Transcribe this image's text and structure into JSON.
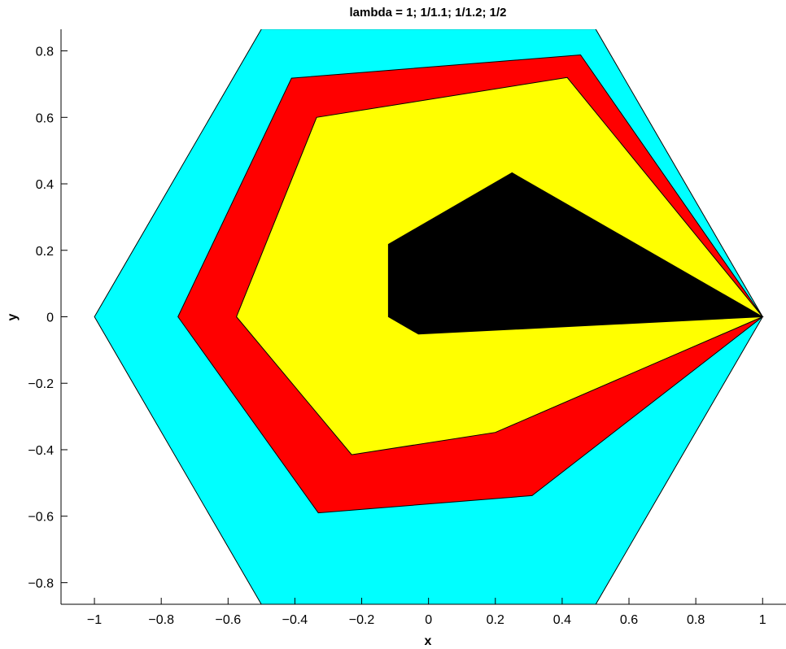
{
  "chart_data": {
    "type": "area",
    "title": "lambda  =  1; 1/1.1; 1/1.2; 1/2",
    "xlabel": "x",
    "ylabel": "y",
    "xlim": [
      -1.1,
      1.07
    ],
    "ylim": [
      -0.865,
      0.865
    ],
    "xticks": [
      -1,
      -0.8,
      -0.6,
      -0.4,
      -0.2,
      0,
      0.2,
      0.4,
      0.6,
      0.8,
      1
    ],
    "xtick_labels": [
      "−1",
      "−0.8",
      "−0.6",
      "−0.4",
      "−0.2",
      "0",
      "0.2",
      "0.4",
      "0.6",
      "0.8",
      "1"
    ],
    "yticks": [
      0.8,
      0.6,
      0.4,
      0.2,
      0,
      -0.2,
      -0.4,
      -0.6,
      -0.8
    ],
    "ytick_labels": [
      "0.8",
      "0.6",
      "0.4",
      "0.2",
      "0",
      "−0.2",
      "−0.4",
      "−0.6",
      "−0.8"
    ],
    "grid": false,
    "legend": "none",
    "series": [
      {
        "color": "#00ffff",
        "points": [
          [
            1,
            0
          ],
          [
            0.5,
            0.866
          ],
          [
            -0.5,
            0.866
          ],
          [
            -1,
            0
          ],
          [
            -0.5,
            -0.866
          ],
          [
            0.5,
            -0.866
          ]
        ]
      },
      {
        "color": "#ff0000",
        "points": [
          [
            1,
            0
          ],
          [
            0.455,
            0.788
          ],
          [
            -0.41,
            0.718
          ],
          [
            -0.75,
            0
          ],
          [
            -0.33,
            -0.59
          ],
          [
            0.31,
            -0.538
          ]
        ]
      },
      {
        "color": "#ffff00",
        "points": [
          [
            1,
            0
          ],
          [
            0.415,
            0.72
          ],
          [
            -0.335,
            0.6
          ],
          [
            -0.575,
            0
          ],
          [
            -0.23,
            -0.415
          ],
          [
            0.2,
            -0.348
          ]
        ]
      },
      {
        "color": "#000000",
        "points": [
          [
            1,
            0
          ],
          [
            0.25,
            0.433
          ],
          [
            -0.12,
            0.218
          ],
          [
            -0.12,
            0
          ],
          [
            -0.03,
            -0.052
          ]
        ]
      }
    ]
  }
}
